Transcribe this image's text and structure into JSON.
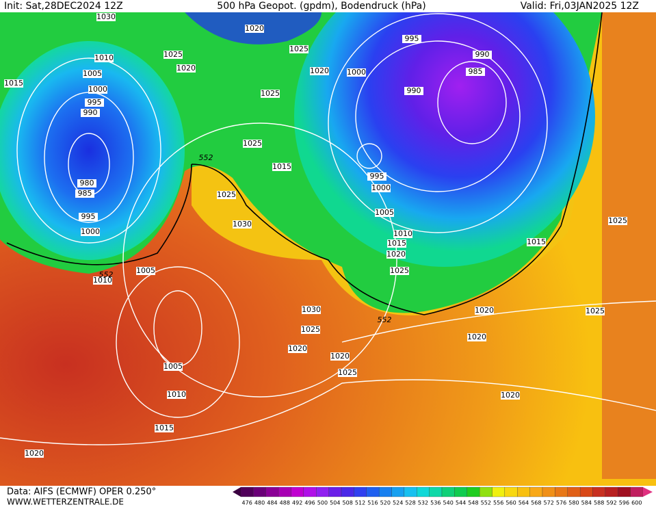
{
  "header": {
    "init": "Init: Sat,28DEC2024 12Z",
    "title": "500 hPa Geopot. (gpdm), Bodendruck (hPa)",
    "valid": "Valid: Fri,03JAN2025 12Z"
  },
  "isobar_labels": [
    "1030",
    "1020",
    "1025",
    "995",
    "990",
    "1010",
    "1025",
    "1020",
    "1020",
    "1000",
    "985",
    "1015",
    "1005",
    "1000",
    "1025",
    "990",
    "995",
    "990",
    "1025",
    "1015",
    "980",
    "985",
    "995",
    "1000",
    "1025",
    "995",
    "1005",
    "1030",
    "1000",
    "1010",
    "1015",
    "1015",
    "1020",
    "1025",
    "1025",
    "1005",
    "1010",
    "1030",
    "1020",
    "1025",
    "1025",
    "1020",
    "1020",
    "1020",
    "1005",
    "1025",
    "1010",
    "1020",
    "1015",
    "1020"
  ],
  "contour_552_labels": [
    "552",
    "552",
    "552"
  ],
  "colorbar": {
    "levels": [
      476,
      480,
      484,
      488,
      492,
      496,
      500,
      504,
      508,
      512,
      516,
      520,
      524,
      528,
      532,
      536,
      540,
      544,
      548,
      552,
      556,
      560,
      564,
      568,
      572,
      576,
      580,
      584,
      588,
      592,
      596,
      600
    ]
  },
  "footer": {
    "source": "Data: AIFS (ECMWF) OPER 0.250°",
    "site": "WWW.WETTERZENTRALE.DE"
  }
}
